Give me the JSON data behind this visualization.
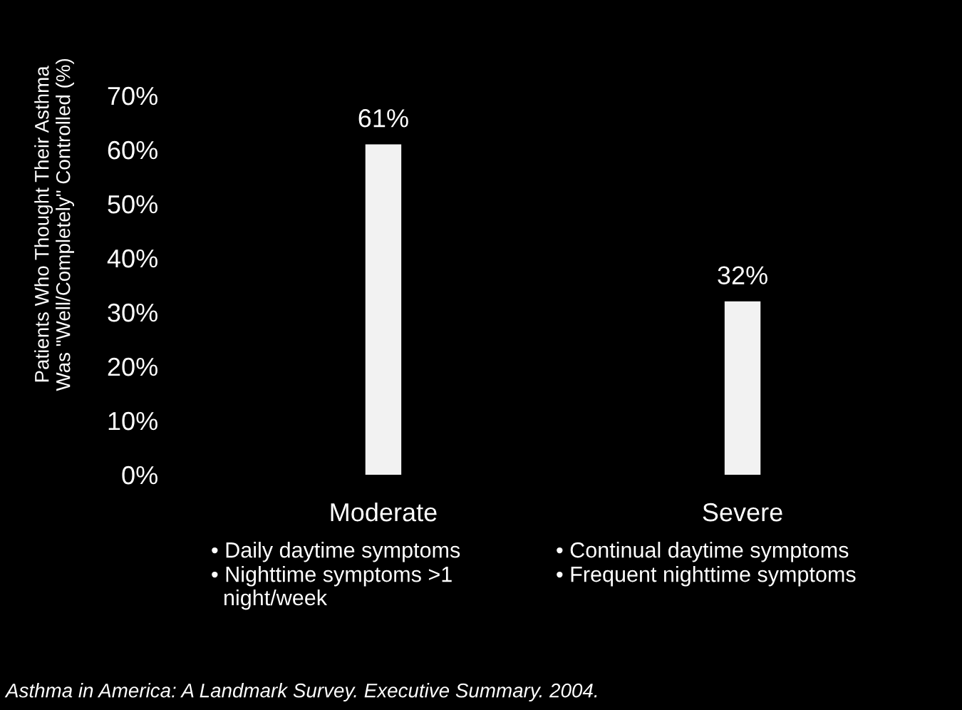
{
  "chart_data": {
    "type": "bar",
    "ylabel": "Patients Who Thought Their Asthma\nWas \"Well/Completely\" Controlled (%)",
    "categories": [
      "Moderate",
      "Severe"
    ],
    "values": [
      61,
      32
    ],
    "value_labels": [
      "61%",
      "32%"
    ],
    "color": "#f2f2f2",
    "ylim": [
      0,
      70
    ],
    "yticks": [
      {
        "value": 0,
        "label": "0%"
      },
      {
        "value": 10,
        "label": "10%"
      },
      {
        "value": 20,
        "label": "20%"
      },
      {
        "value": 30,
        "label": "30%"
      },
      {
        "value": 40,
        "label": "40%"
      },
      {
        "value": 50,
        "label": "50%"
      },
      {
        "value": 60,
        "label": "60%"
      },
      {
        "value": 70,
        "label": "70%"
      }
    ],
    "grid": false,
    "annotations": [
      "• Daily daytime symptoms",
      "• Nighttime symptoms >1\n  night/week",
      "• Continual daytime symptoms",
      "• Frequent nighttime symptoms",
      "Asthma in America: A Landmark Survey. Executive Summary. 2004."
    ]
  }
}
